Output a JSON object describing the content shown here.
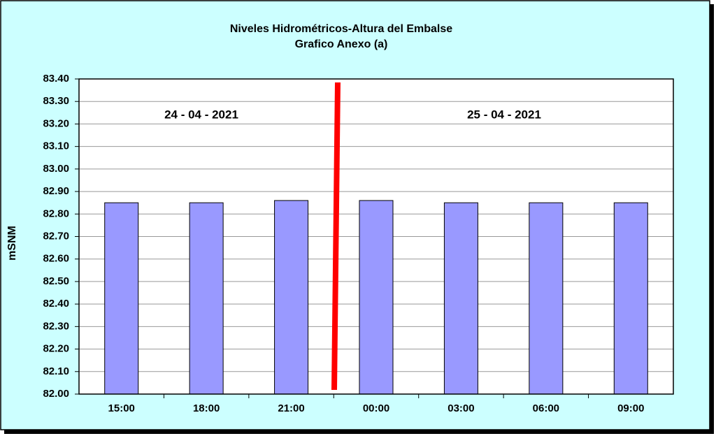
{
  "chart_data": {
    "type": "bar",
    "title": "Niveles Hidrométricos-Altura del Embalse",
    "subtitle": "Grafico Anexo (a)",
    "y_label": "mSNM",
    "annotations": [
      "24 - 04 - 2021",
      "25 - 04 - 2021"
    ],
    "categories": [
      "15:00",
      "18:00",
      "21:00",
      "00:00",
      "03:00",
      "06:00",
      "09:00"
    ],
    "values": [
      82.85,
      82.85,
      82.86,
      82.86,
      82.85,
      82.85,
      82.85
    ],
    "color": "#9999ff",
    "ylim": [
      82,
      83.4
    ],
    "yticks": [
      {
        "value": 82,
        "label": "82.00"
      },
      {
        "value": 82.1,
        "label": "82.10"
      },
      {
        "value": 82.2,
        "label": "82.20"
      },
      {
        "value": 82.3,
        "label": "82.30"
      },
      {
        "value": 82.4,
        "label": "82.40"
      },
      {
        "value": 82.5,
        "label": "82.50"
      },
      {
        "value": 82.6,
        "label": "82.60"
      },
      {
        "value": 82.7,
        "label": "82.70"
      },
      {
        "value": 82.8,
        "label": "82.80"
      },
      {
        "value": 82.9,
        "label": "82.90"
      },
      {
        "value": 83,
        "label": "83.00"
      },
      {
        "value": 83.1,
        "label": "83.10"
      },
      {
        "value": 83.2,
        "label": "83.20"
      },
      {
        "value": 83.3,
        "label": "83.30"
      },
      {
        "value": 83.4,
        "label": "83.40"
      }
    ],
    "grid": true
  }
}
